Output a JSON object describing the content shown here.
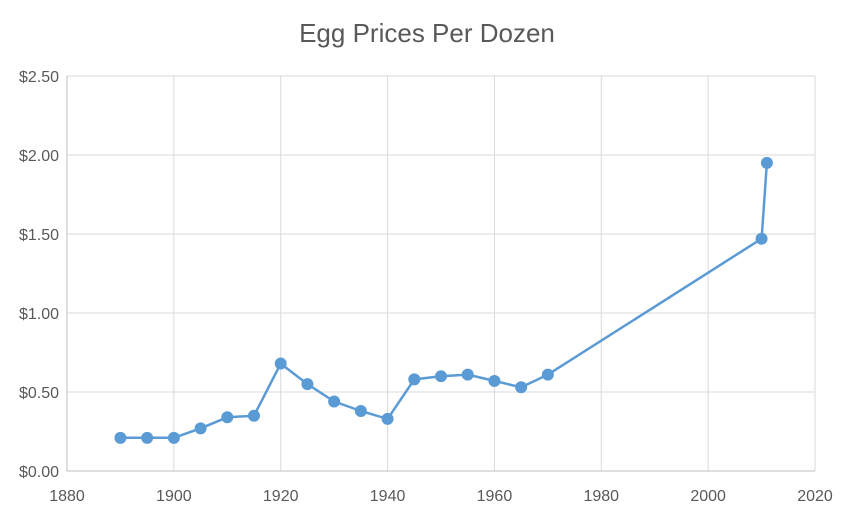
{
  "chart_data": {
    "type": "scatter",
    "title": "Egg Prices Per Dozen",
    "xlabel": "",
    "ylabel": "",
    "xlim": [
      1880,
      2020
    ],
    "ylim": [
      0,
      2.5
    ],
    "x_ticks": [
      1880,
      1900,
      1920,
      1940,
      1960,
      1980,
      2000,
      2020
    ],
    "y_ticks": [
      0,
      0.5,
      1.0,
      1.5,
      2.0,
      2.5
    ],
    "y_tick_labels": [
      "$0.00",
      "$0.50",
      "$1.00",
      "$1.50",
      "$2.00",
      "$2.50"
    ],
    "x_tick_labels": [
      "1880",
      "1900",
      "1920",
      "1940",
      "1960",
      "1980",
      "2000",
      "2020"
    ],
    "grid": true,
    "legend": "none",
    "series": [
      {
        "color": "#5b9bd5",
        "x": [
          1890,
          1895,
          1900,
          1905,
          1910,
          1915,
          1920,
          1925,
          1930,
          1935,
          1940,
          1945,
          1950,
          1955,
          1960,
          1965,
          1970,
          2010,
          2011
        ],
        "y": [
          0.21,
          0.21,
          0.21,
          0.27,
          0.34,
          0.35,
          0.68,
          0.55,
          0.44,
          0.38,
          0.33,
          0.58,
          0.6,
          0.61,
          0.57,
          0.53,
          0.61,
          1.47,
          1.95
        ]
      }
    ]
  }
}
